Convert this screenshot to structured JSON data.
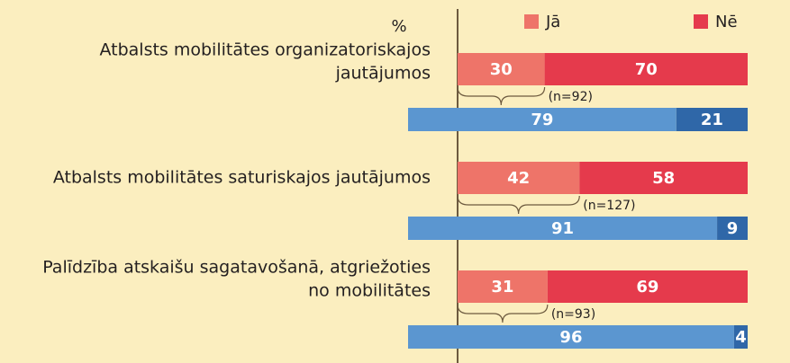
{
  "chart_data": {
    "type": "stacked-bar-horizontal",
    "unit_label": "%",
    "categories": [
      [
        "Atbalsts mobilitātes organizatoriskajos",
        "jautājumos"
      ],
      [
        "Atbalsts mobilitātes saturiskajos jautājumos"
      ],
      [
        "Palīdzība atskaišu sagatavošanā, atgriežoties",
        "no mobilitātes"
      ]
    ],
    "series": [
      {
        "name": "Jā",
        "color": "#ee7469",
        "values": [
          30,
          42,
          31
        ]
      },
      {
        "name": "Nē",
        "color": "#e53a4c",
        "values": [
          70,
          58,
          69
        ]
      }
    ],
    "sub_series": [
      {
        "color": "#5b96d0",
        "values": [
          79,
          91,
          96
        ]
      },
      {
        "color": "#2f67a8",
        "values": [
          21,
          9,
          4
        ]
      }
    ],
    "annotations": [
      "(n=92)",
      "(n=127)",
      "(n=93)"
    ],
    "xlim": [
      0,
      100
    ]
  }
}
